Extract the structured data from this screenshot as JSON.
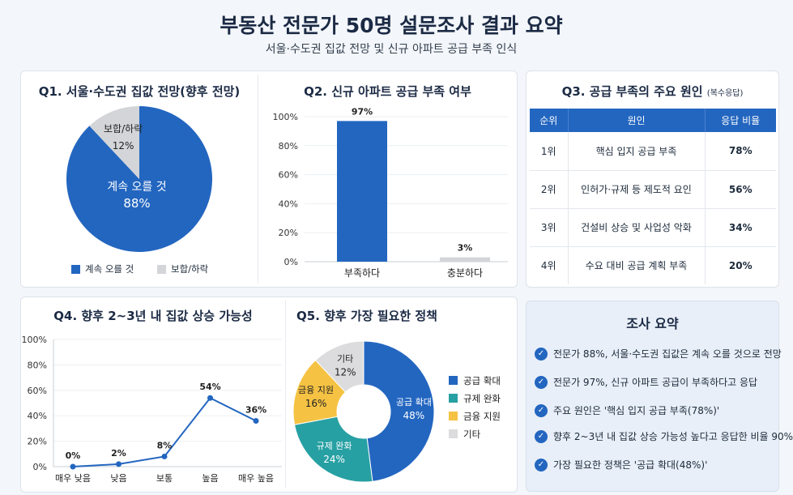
{
  "header": {
    "title": "부동산 전문가 50명 설문조사 결과 요약",
    "subtitle": "서울·수도권 집값 전망 및 신규 아파트 공급 부족 인식"
  },
  "colors": {
    "blue": "#2366c0",
    "gray": "#d3d5d8",
    "teal": "#27a0a3",
    "yellow": "#f5c243",
    "light": "#dcdcde"
  },
  "q1": {
    "title": "Q1. 서울·수도권 집값 전망(향후 전망)",
    "legend": [
      "계속 오를 것",
      "보합/하락"
    ]
  },
  "q2": {
    "title": "Q2. 신규 아파트 공급 부족 여부"
  },
  "q3": {
    "title": "Q3. 공급 부족의 주요 원인",
    "title_note": "(복수응답)",
    "headers": [
      "순위",
      "원인",
      "응답 비율"
    ],
    "rows": [
      {
        "rank": "1위",
        "cause": "핵심 입지 공급 부족",
        "pct": "78%"
      },
      {
        "rank": "2위",
        "cause": "인허가·규제 등 제도적 요인",
        "pct": "56%"
      },
      {
        "rank": "3위",
        "cause": "건설비 상승 및 사업성 악화",
        "pct": "34%"
      },
      {
        "rank": "4위",
        "cause": "수요 대비 공급 계획 부족",
        "pct": "20%"
      }
    ]
  },
  "q4": {
    "title": "Q4. 향후 2~3년 내 집값 상승 가능성"
  },
  "q5": {
    "title": "Q5. 향후 가장 필요한 정책"
  },
  "summary": {
    "title": "조사 요약",
    "items": [
      "전문가 88%, 서울·수도권 집값은 계속 오를 것으로 전망",
      "전문가 97%, 신규 아파트 공급이 부족하다고 응답",
      "주요 원인은 '핵심 입지 공급 부족(78%)'",
      "향후 2~3년 내 집값 상승 가능성 높다고 응답한 비율 90%",
      "가장 필요한 정책은 '공급 확대(48%)'"
    ]
  },
  "chart_data": [
    {
      "type": "pie",
      "title": "Q1. 서울·수도권 집값 전망(향후 전망)",
      "labels": [
        "계속 오를 것",
        "보합/하락"
      ],
      "values": [
        88,
        12
      ],
      "value_labels": [
        "88%",
        "12%"
      ],
      "colors": [
        "#2366c0",
        "#d3d5d8"
      ],
      "legend": "bottom"
    },
    {
      "type": "bar",
      "title": "Q2. 신규 아파트 공급 부족 여부",
      "categories": [
        "부족하다",
        "충분하다"
      ],
      "values": [
        97,
        3
      ],
      "value_labels": [
        "97%",
        "3%"
      ],
      "colors": [
        "#2366c0",
        "#d3d5d8"
      ],
      "ylim": [
        0,
        100
      ],
      "yticks": [
        "0%",
        "20%",
        "40%",
        "60%",
        "80%",
        "100%"
      ],
      "grid": true
    },
    {
      "type": "line",
      "title": "Q4. 향후 2~3년 내 집값 상승 가능성",
      "categories": [
        "매우 낮음",
        "낮음",
        "보통",
        "높음",
        "매우 높음"
      ],
      "values": [
        0,
        2,
        8,
        54,
        36
      ],
      "value_labels": [
        "0%",
        "2%",
        "8%",
        "54%",
        "36%"
      ],
      "color": "#2366c0",
      "ylim": [
        0,
        100
      ],
      "yticks": [
        "0%",
        "20%",
        "40%",
        "60%",
        "80%",
        "100%"
      ],
      "grid": true
    },
    {
      "type": "pie",
      "title": "Q5. 향후 가장 필요한 정책",
      "donut": true,
      "labels": [
        "공급 확대",
        "규제 완화",
        "금융 지원",
        "기타"
      ],
      "values": [
        48,
        24,
        16,
        12
      ],
      "value_labels": [
        "48%",
        "24%",
        "16%",
        "12%"
      ],
      "colors": [
        "#2366c0",
        "#27a0a3",
        "#f5c243",
        "#dcdcde"
      ],
      "legend": "right"
    }
  ]
}
